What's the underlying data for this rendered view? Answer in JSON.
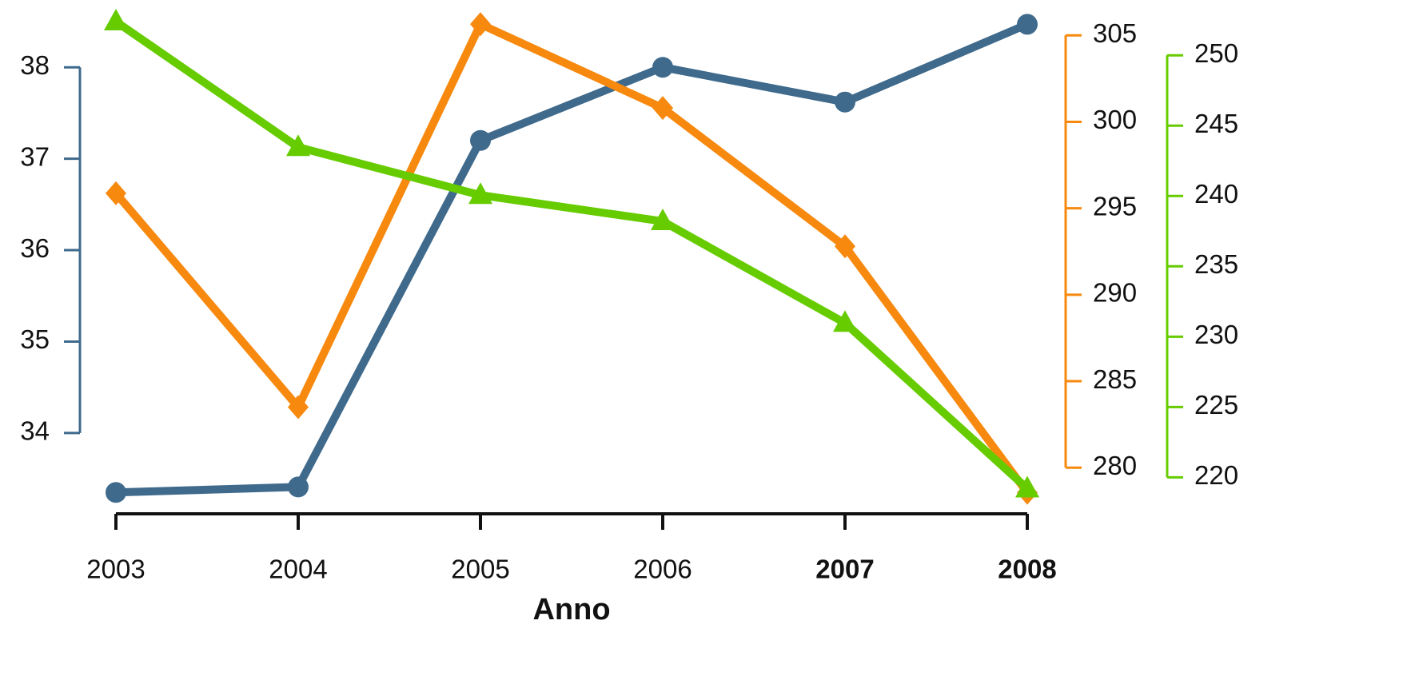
{
  "chart_data": {
    "type": "line",
    "categories": [
      "2003",
      "2004",
      "2005",
      "2006",
      "2007",
      "2008"
    ],
    "category_weights": [
      "normal",
      "normal",
      "normal",
      "normal",
      "bold",
      "bold"
    ],
    "xlabel": "Anno",
    "ylim": [
      33.3,
      38.5
    ],
    "yticks": [
      34,
      35,
      36,
      37,
      38
    ],
    "y2lim": [
      278.3,
      305.8
    ],
    "y2ticks": [
      280,
      285,
      290,
      295,
      300,
      305
    ],
    "y3lim": [
      218.6,
      252.4
    ],
    "y3ticks": [
      220,
      225,
      230,
      235,
      240,
      245,
      250
    ],
    "series": [
      {
        "color": "#3f6a8c",
        "marker": "circle",
        "values": [
          33.35,
          33.41,
          37.2,
          38.0,
          37.62,
          38.47
        ]
      },
      {
        "color": "#f7890f",
        "marker": "diamond",
        "axis": "y2",
        "values": [
          295.87,
          283.5,
          305.65,
          300.8,
          292.8,
          278.55
        ]
      },
      {
        "color": "#66cc00",
        "marker": "triangle",
        "axis": "y3",
        "values": [
          252.4,
          243.47,
          240.06,
          238.2,
          230.97,
          219.2
        ]
      }
    ]
  }
}
